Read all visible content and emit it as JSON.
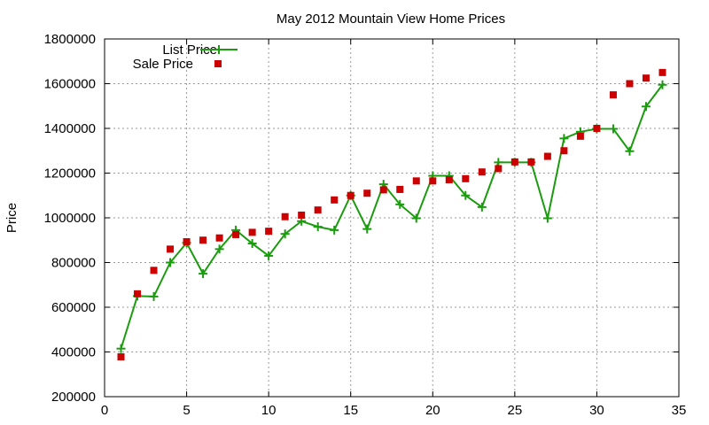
{
  "chart_data": {
    "type": "line",
    "title": "May 2012 Mountain View Home Prices",
    "xlabel": "",
    "ylabel": "Price",
    "xlim": [
      0,
      35
    ],
    "ylim": [
      200000,
      1800000
    ],
    "xticks": [
      0,
      5,
      10,
      15,
      20,
      25,
      30,
      35
    ],
    "yticks": [
      200000,
      400000,
      600000,
      800000,
      1000000,
      1200000,
      1400000,
      1600000,
      1800000
    ],
    "grid": true,
    "legend_position": "top-left",
    "series": [
      {
        "name": "List Price",
        "style": "line+plus",
        "color": "#1a9c0e",
        "x": [
          1,
          2,
          3,
          4,
          5,
          6,
          7,
          8,
          9,
          10,
          11,
          12,
          13,
          14,
          15,
          16,
          17,
          18,
          19,
          20,
          21,
          22,
          23,
          24,
          25,
          26,
          27,
          28,
          29,
          30,
          31,
          32,
          33,
          34
        ],
        "y": [
          415000,
          650000,
          648000,
          800000,
          888000,
          750000,
          860000,
          945000,
          885000,
          830000,
          928000,
          985000,
          960000,
          945000,
          1100000,
          950000,
          1150000,
          1060000,
          998000,
          1188000,
          1188000,
          1100000,
          1048000,
          1248000,
          1248000,
          1248000,
          998000,
          1355000,
          1385000,
          1398000,
          1398000,
          1298000,
          1498000,
          1595000
        ]
      },
      {
        "name": "Sale Price",
        "style": "square",
        "color": "#cc0000",
        "x": [
          1,
          2,
          3,
          4,
          5,
          6,
          7,
          8,
          9,
          10,
          11,
          12,
          13,
          14,
          15,
          16,
          17,
          18,
          19,
          20,
          21,
          22,
          23,
          24,
          25,
          26,
          27,
          28,
          29,
          30,
          31,
          32,
          33,
          34
        ],
        "y": [
          378000,
          660000,
          765000,
          860000,
          893000,
          900000,
          910000,
          925000,
          935000,
          940000,
          1005000,
          1012000,
          1035000,
          1080000,
          1100000,
          1110000,
          1125000,
          1127000,
          1165000,
          1165000,
          1170000,
          1175000,
          1205000,
          1220000,
          1250000,
          1250000,
          1275000,
          1300000,
          1365000,
          1400000,
          1550000,
          1600000,
          1625000,
          1650000
        ]
      }
    ]
  }
}
